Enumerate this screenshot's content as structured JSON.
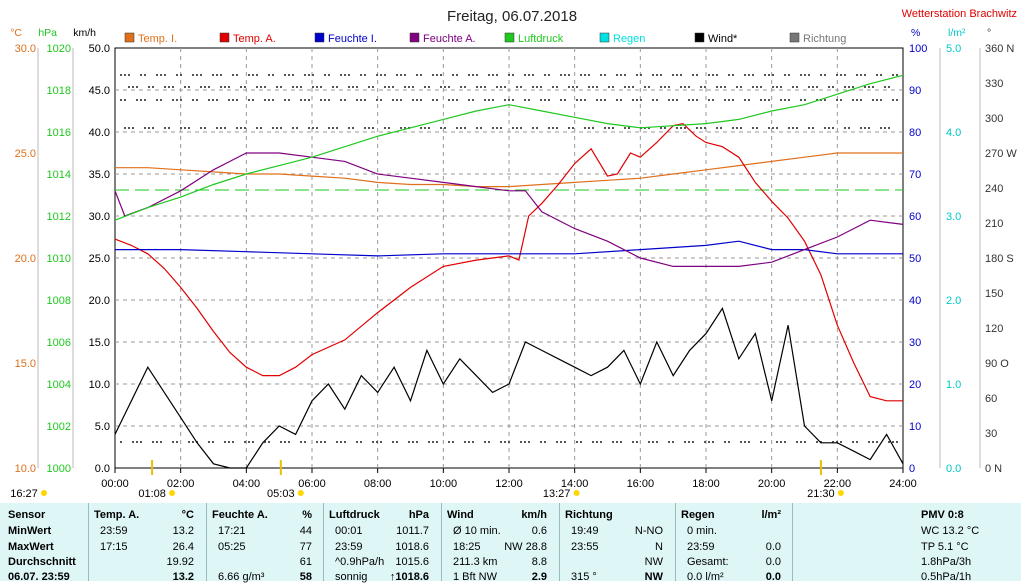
{
  "chart_data": {
    "type": "line",
    "title": "Freitag, 06.07.2018",
    "station": "Wetterstation Brachwitz",
    "x_ticks": [
      "00:00",
      "02:00",
      "04:00",
      "06:00",
      "08:00",
      "10:00",
      "12:00",
      "14:00",
      "16:00",
      "18:00",
      "20:00",
      "22:00",
      "24:00"
    ],
    "xlim": [
      "00:00",
      "24:00"
    ],
    "left_axes": [
      {
        "unit": "°C",
        "color": "#e0701b",
        "ticks": [
          "30.0",
          "25.0",
          "20.0",
          "15.0",
          "10.0"
        ],
        "ylim": [
          10,
          30
        ]
      },
      {
        "unit": "hPa",
        "color": "#1ec81e",
        "ticks": [
          "1020",
          "1018",
          "1016",
          "1014",
          "1012",
          "1010",
          "1008",
          "1006",
          "1004",
          "1002",
          "1000"
        ],
        "ylim": [
          1000,
          1020
        ]
      },
      {
        "unit": "km/h",
        "color": "#000000",
        "ticks": [
          "50.0",
          "45.0",
          "40.0",
          "35.0",
          "30.0",
          "25.0",
          "20.0",
          "15.0",
          "10.0",
          "5.0",
          "0.0"
        ],
        "ylim": [
          0,
          50
        ]
      }
    ],
    "right_axes": [
      {
        "unit": "%",
        "color": "#0000cc",
        "ticks": [
          "100",
          "90",
          "80",
          "70",
          "60",
          "50",
          "40",
          "30",
          "20",
          "10",
          "0"
        ],
        "ylim": [
          0,
          100
        ]
      },
      {
        "unit": "l/m²",
        "color": "#00c8c8",
        "ticks": [
          "5.0",
          "4.0",
          "3.0",
          "2.0",
          "1.0",
          "0.0"
        ],
        "ylim": [
          0,
          5
        ]
      },
      {
        "unit": "°",
        "color": "#333333",
        "ticks": [
          "360 N",
          "330",
          "300",
          "270 W",
          "240",
          "210",
          "180 S",
          "150",
          "120",
          "90 O",
          "60",
          "30",
          "0 N"
        ],
        "ylim": [
          0,
          360
        ]
      }
    ],
    "legend": [
      {
        "name": "Temp. I.",
        "color": "#e0701b"
      },
      {
        "name": "Temp. A.",
        "color": "#e00000"
      },
      {
        "name": "Feuchte I.",
        "color": "#0000cc"
      },
      {
        "name": "Feuchte A.",
        "color": "#800080"
      },
      {
        "name": "Luftdruck",
        "color": "#1ec81e"
      },
      {
        "name": "Regen",
        "color": "#00e0e0"
      },
      {
        "name": "Wind*",
        "color": "#000000"
      },
      {
        "name": "Richtung",
        "color": "#777777"
      }
    ],
    "marker_labels": [
      {
        "text": "16:27",
        "t": -1
      },
      {
        "text": "01:08",
        "t": 1.13
      },
      {
        "text": "05:03",
        "t": 5.05
      },
      {
        "text": "13:27",
        "t": 13.45
      },
      {
        "text": "21:30",
        "t": 21.5
      }
    ],
    "series": [
      {
        "name": "Temp. I.",
        "axis": "°C",
        "color": "#e0701b",
        "x": [
          0,
          1,
          2,
          3,
          4,
          5,
          6,
          7,
          8,
          9,
          10,
          11,
          12,
          13,
          14,
          15,
          16,
          17,
          18,
          19,
          20,
          21,
          22,
          23,
          24
        ],
        "y": [
          24.3,
          24.3,
          24.2,
          24.1,
          24.0,
          24.0,
          23.9,
          23.8,
          23.6,
          23.5,
          23.5,
          23.4,
          23.4,
          23.5,
          23.6,
          23.7,
          23.8,
          24.0,
          24.2,
          24.4,
          24.6,
          24.8,
          25.0,
          25.0,
          25.0
        ]
      },
      {
        "name": "Temp. A.",
        "axis": "°C",
        "color": "#e00000",
        "x": [
          0,
          0.5,
          1,
          1.5,
          2,
          2.5,
          3,
          3.5,
          4,
          4.5,
          5,
          5.5,
          6,
          7,
          8,
          9,
          10,
          11,
          12,
          12.3,
          12.6,
          13,
          13.5,
          14,
          14.5,
          15,
          15.3,
          15.7,
          16,
          16.5,
          17,
          17.3,
          17.7,
          18,
          18.5,
          19,
          19.5,
          20,
          20.5,
          21,
          21.5,
          22,
          22.5,
          23,
          23.5,
          24
        ],
        "y": [
          20.9,
          20.6,
          20.2,
          19.5,
          18.6,
          17.6,
          16.5,
          15.5,
          14.8,
          14.4,
          14.4,
          14.8,
          15.4,
          16.1,
          17.4,
          18.6,
          19.6,
          19.9,
          20.1,
          19.9,
          22,
          22.6,
          23.5,
          24.5,
          25.2,
          23.9,
          24.0,
          25.0,
          24.8,
          25.5,
          26.3,
          26.4,
          25.8,
          25.5,
          25.3,
          24.8,
          23.6,
          22.7,
          21.9,
          20.8,
          19.2,
          16.8,
          15.0,
          13.4,
          13.2,
          13.2
        ]
      },
      {
        "name": "Feuchte I.",
        "axis": "%",
        "color": "#0000cc",
        "x": [
          0,
          2,
          4,
          6,
          8,
          10,
          12,
          14,
          16,
          18,
          19,
          20,
          21,
          22,
          23,
          24
        ],
        "y": [
          52,
          52,
          51.5,
          51,
          50.5,
          51,
          51,
          51,
          52,
          53,
          54,
          52,
          52,
          51,
          51,
          51
        ]
      },
      {
        "name": "Feuchte A.",
        "axis": "%",
        "color": "#800080",
        "x": [
          0,
          0.3,
          1,
          2,
          3,
          3.5,
          4,
          5,
          6,
          7,
          8,
          9,
          10,
          11,
          12,
          12.5,
          13,
          14,
          15,
          16,
          17,
          18,
          19,
          20,
          21,
          22,
          23,
          24
        ],
        "y": [
          66,
          60,
          62,
          66,
          71,
          73,
          75,
          75,
          74,
          73,
          70,
          69,
          68,
          67,
          66,
          66,
          61,
          57,
          54,
          50,
          48,
          48,
          48,
          49,
          52,
          55,
          59,
          58
        ]
      },
      {
        "name": "Luftdruck",
        "axis": "hPa",
        "color": "#1ec81e",
        "x": [
          0,
          1,
          2,
          3,
          4,
          5,
          6,
          7,
          8,
          9,
          10,
          11,
          12,
          13,
          14,
          15,
          16,
          17,
          18,
          19,
          20,
          21,
          22,
          23,
          24
        ],
        "y": [
          1011.8,
          1012.4,
          1012.9,
          1013.5,
          1014.0,
          1014.4,
          1014.8,
          1015.3,
          1015.8,
          1016.2,
          1016.6,
          1017.0,
          1017.3,
          1017.0,
          1016.7,
          1016.4,
          1016.2,
          1016.3,
          1016.4,
          1016.6,
          1017.0,
          1017.3,
          1017.8,
          1018.3,
          1018.7
        ]
      },
      {
        "name": "Wind*",
        "axis": "km/h",
        "color": "#000000",
        "x": [
          0,
          0.5,
          1,
          1.5,
          2,
          2.5,
          3,
          3.5,
          4,
          4.5,
          5,
          5.5,
          6,
          6.5,
          7,
          7.5,
          8,
          8.5,
          9,
          9.5,
          10,
          10.5,
          11,
          11.5,
          12,
          12.5,
          13,
          13.5,
          14,
          14.5,
          15,
          15.5,
          16,
          16.5,
          17,
          17.5,
          18,
          18.5,
          19,
          19.5,
          20,
          20.5,
          21,
          21.5,
          22,
          22.5,
          23,
          23.5,
          24
        ],
        "y": [
          4,
          8,
          12,
          9,
          6,
          3,
          0.5,
          0,
          0,
          3,
          5,
          4,
          8,
          10,
          7,
          11,
          9,
          12,
          8,
          14,
          10,
          13,
          11,
          9,
          10,
          15,
          14,
          13,
          12,
          11,
          12,
          14,
          10,
          15,
          11,
          14,
          16,
          19,
          13,
          16,
          8,
          17,
          5,
          3,
          3,
          2,
          1,
          4,
          0.5
        ]
      }
    ]
  },
  "table": {
    "row_labels": [
      "Sensor",
      "MinWert",
      "MaxWert",
      "Durchschnitt",
      "06.07. 23:59"
    ],
    "columns": [
      {
        "header": "Temp. A.",
        "unit": "°C",
        "rows": [
          [
            "23:59",
            "13.2"
          ],
          [
            "17:15",
            "26.4"
          ],
          [
            "",
            "19.92"
          ],
          [
            "",
            "13.2"
          ]
        ]
      },
      {
        "header": "Feuchte A.",
        "unit": "%",
        "rows": [
          [
            "17:21",
            "44"
          ],
          [
            "05:25",
            "77"
          ],
          [
            "",
            "61"
          ],
          [
            "6.66 g/m³",
            "58"
          ]
        ]
      },
      {
        "header": "Luftdruck",
        "unit": "hPa",
        "rows": [
          [
            "00:01",
            "1011.7"
          ],
          [
            "23:59",
            "1018.6"
          ],
          [
            "^0.9hPa/h",
            "1015.6"
          ],
          [
            "sonnig",
            "↑1018.6"
          ]
        ]
      },
      {
        "header": "Wind",
        "unit": "km/h",
        "rows": [
          [
            "Ø 10 min.",
            "0.6"
          ],
          [
            "18:25",
            "NW 28.8"
          ],
          [
            "211.3 km",
            "8.8"
          ],
          [
            "1 Bft NW",
            "2.9"
          ]
        ]
      },
      {
        "header": "Richtung",
        "unit": "",
        "rows": [
          [
            "19:49",
            "N-NO"
          ],
          [
            "23:55",
            "N"
          ],
          [
            "",
            "NW"
          ],
          [
            "315 °",
            "NW"
          ]
        ]
      },
      {
        "header": "Regen",
        "unit": "l/m²",
        "rows": [
          [
            "0 min.",
            ""
          ],
          [
            "23:59",
            "0.0"
          ],
          [
            "Gesamt:",
            "0.0"
          ],
          [
            "0.0 l/m²",
            "0.0"
          ]
        ]
      }
    ],
    "pmv": {
      "header": "PMV 0:8",
      "lines": [
        "WC 13.2 °C",
        "TP 5.1 °C",
        "1.8hPa/3h",
        "0.5hPa/1h"
      ]
    }
  }
}
